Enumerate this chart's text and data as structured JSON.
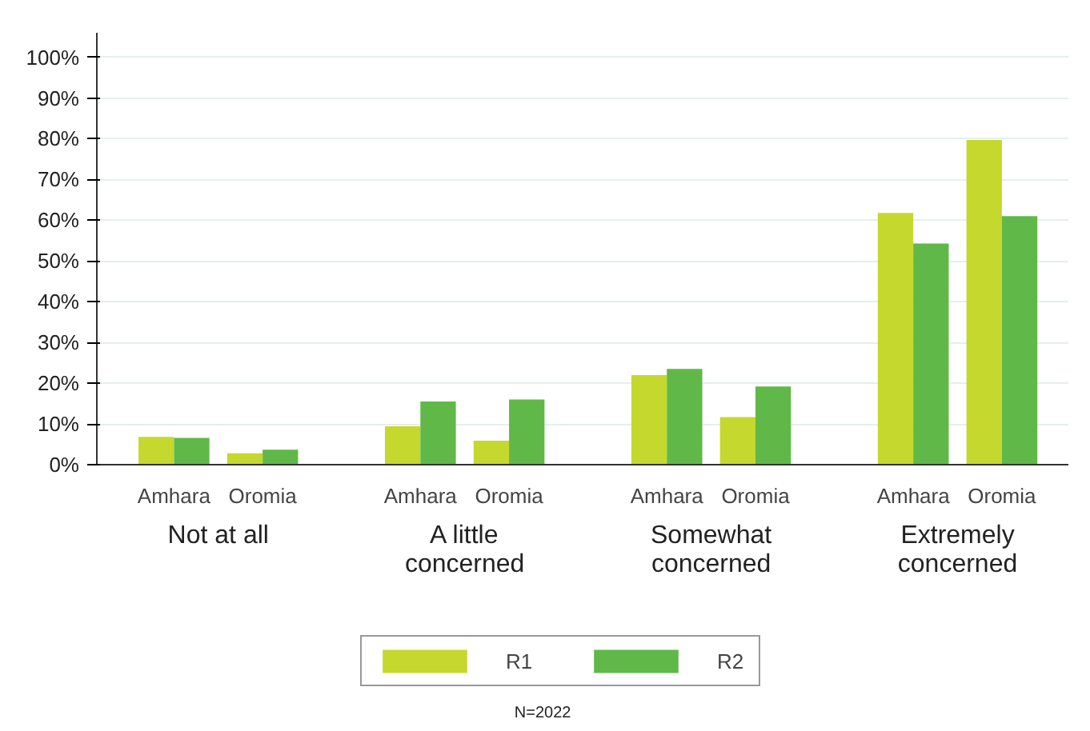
{
  "chart_data": {
    "type": "bar",
    "categories": [
      "Amhara",
      "Oromia",
      "Amhara",
      "Oromia",
      "Amhara",
      "Oromia",
      "Amhara",
      "Oromia"
    ],
    "series": [
      {
        "name": "R1",
        "color": "#c5d82e",
        "values": [
          6.8,
          2.8,
          9.4,
          5.9,
          22,
          11.7,
          61.8,
          79.7
        ]
      },
      {
        "name": "R2",
        "color": "#60b848",
        "values": [
          6.6,
          3.7,
          15.5,
          16,
          23.5,
          19.2,
          54.3,
          61
        ]
      }
    ],
    "annotations": [
      "Not at all",
      "A little concerned",
      "Somewhat concerned",
      "Extremely concerned",
      "N=2022"
    ],
    "ylim": [
      0,
      106
    ],
    "yticks": [
      {
        "value": 0,
        "label": "0%"
      },
      {
        "value": 10,
        "label": "10%"
      },
      {
        "value": 20,
        "label": "20%"
      },
      {
        "value": 30,
        "label": "30%"
      },
      {
        "value": 40,
        "label": "40%"
      },
      {
        "value": 50,
        "label": "50%"
      },
      {
        "value": 60,
        "label": "60%"
      },
      {
        "value": 70,
        "label": "70%"
      },
      {
        "value": 80,
        "label": "80%"
      },
      {
        "value": 90,
        "label": "90%"
      },
      {
        "value": 100,
        "label": "100%"
      }
    ],
    "grid": "y",
    "legend": "bottom"
  }
}
